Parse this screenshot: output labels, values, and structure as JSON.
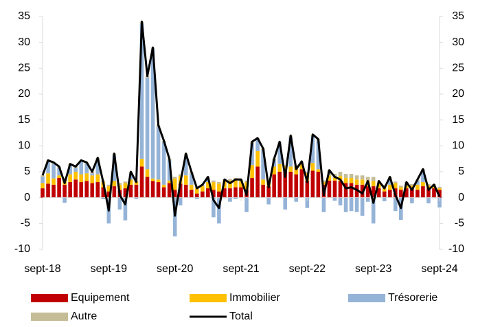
{
  "chart_data": {
    "type": "bar",
    "stacked": true,
    "categories": [
      "sept-18",
      null,
      null,
      null,
      null,
      null,
      null,
      null,
      null,
      null,
      null,
      null,
      "sept-19",
      null,
      null,
      null,
      null,
      null,
      null,
      null,
      null,
      null,
      null,
      null,
      "sept-20",
      null,
      null,
      null,
      null,
      null,
      null,
      null,
      null,
      null,
      null,
      null,
      "sept-21",
      null,
      null,
      null,
      null,
      null,
      null,
      null,
      null,
      null,
      null,
      null,
      "sept-22",
      null,
      null,
      null,
      null,
      null,
      null,
      null,
      null,
      null,
      null,
      null,
      "sept-23",
      null,
      null,
      null,
      null,
      null,
      null,
      null,
      null,
      null,
      null,
      null,
      "sept-24"
    ],
    "ylim": [
      -10,
      35
    ],
    "yticks": [
      -10,
      -5,
      0,
      5,
      10,
      15,
      20,
      25,
      30,
      35
    ],
    "y2lim": [
      -10,
      35
    ],
    "y2ticks": [
      -10,
      -5,
      0,
      5,
      10,
      15,
      20,
      25,
      30,
      35
    ],
    "legend": "bottom",
    "series": [
      {
        "name": "Equipement",
        "color": "#c00000",
        "values": [
          1.8,
          2.7,
          2.5,
          3.8,
          2.5,
          3.0,
          3.5,
          3.0,
          3.2,
          2.8,
          3.0,
          2.0,
          1.2,
          2.2,
          1.5,
          1.8,
          2.5,
          2.5,
          6.0,
          4.0,
          3.2,
          3.0,
          2.0,
          2.8,
          1.5,
          2.7,
          2.5,
          1.5,
          0.8,
          1.2,
          1.8,
          1.5,
          1.2,
          1.8,
          1.8,
          2.0,
          2.0,
          1.5,
          3.8,
          6.0,
          2.5,
          2.2,
          4.5,
          5.0,
          5.0,
          5.0,
          4.5,
          5.5,
          3.2,
          5.2,
          5.0,
          2.5,
          3.3,
          3.3,
          3.2,
          2.8,
          2.8,
          2.5,
          2.5,
          2.2,
          2.2,
          1.8,
          1.2,
          1.5,
          1.8,
          1.5,
          1.8,
          1.8,
          1.5,
          2.2,
          1.8,
          1.8,
          1.5
        ]
      },
      {
        "name": "Immobilier",
        "color": "#ffc000",
        "values": [
          1.0,
          2.0,
          1.2,
          0.5,
          1.0,
          1.5,
          1.5,
          1.5,
          1.5,
          1.5,
          1.5,
          1.0,
          1.0,
          1.0,
          1.0,
          1.0,
          1.0,
          0.5,
          1.5,
          1.5,
          0.5,
          0.5,
          0.5,
          0.5,
          2.2,
          1.5,
          1.8,
          1.0,
          1.0,
          1.0,
          1.2,
          1.5,
          1.5,
          1.5,
          1.5,
          1.5,
          1.2,
          1.5,
          2.5,
          3.0,
          1.0,
          0.8,
          1.5,
          1.5,
          1.0,
          1.0,
          1.5,
          1.0,
          1.5,
          1.5,
          0.5,
          0.5,
          1.0,
          0.5,
          1.0,
          1.0,
          1.0,
          1.0,
          1.0,
          1.0,
          1.0,
          1.0,
          1.0,
          1.0,
          1.0,
          0.5,
          0.5,
          0.5,
          1.0,
          0.8,
          0.5,
          0.5,
          0.3
        ]
      },
      {
        "name": "Trésorerie",
        "color": "#95b3d7",
        "values": [
          1.2,
          2.2,
          2.8,
          1.4,
          -1.0,
          1.7,
          0.7,
          2.4,
          1.8,
          0.4,
          2.9,
          -0.3,
          -5.0,
          5.0,
          -2.3,
          -4.4,
          1.2,
          -0.3,
          26.2,
          17.7,
          25.0,
          10.2,
          8.2,
          3.9,
          -7.5,
          -1.5,
          3.9,
          2.2,
          -0.3,
          0.0,
          0.7,
          -3.8,
          -5.0,
          -0.1,
          -0.8,
          -0.3,
          0.0,
          -2.8,
          4.2,
          2.2,
          5.7,
          -1.3,
          1.2,
          4.0,
          -2.3,
          5.7,
          -0.8,
          0.2,
          -2.0,
          5.2,
          5.5,
          -2.8,
          0.2,
          -0.6,
          -1.5,
          -2.8,
          -2.6,
          -2.8,
          -3.5,
          -0.8,
          -5.0,
          0.1,
          -0.7,
          1.2,
          -2.6,
          -4.3,
          0.4,
          -1.1,
          0.7,
          2.2,
          -1.1,
          -0.1,
          -1.9
        ]
      },
      {
        "name": "Autre",
        "color": "#c4bd97",
        "values": [
          0.3,
          0.3,
          0.3,
          0.3,
          0.3,
          0.3,
          0.3,
          0.3,
          0.3,
          0.3,
          0.3,
          0.3,
          0.3,
          0.3,
          0.3,
          0.3,
          0.3,
          0.3,
          0.3,
          0.3,
          0.3,
          0.3,
          0.3,
          0.3,
          0.3,
          0.3,
          0.3,
          0.3,
          0.3,
          0.3,
          0.3,
          0.3,
          0.3,
          0.3,
          0.3,
          0.3,
          0.3,
          0.3,
          0.3,
          0.3,
          0.3,
          0.3,
          0.3,
          0.3,
          0.3,
          0.3,
          0.3,
          0.3,
          0.3,
          0.3,
          0.3,
          0.3,
          0.8,
          0.8,
          0.8,
          0.8,
          0.8,
          0.8,
          0.8,
          0.8,
          0.8,
          0.3,
          0.3,
          0.3,
          0.3,
          0.3,
          0.3,
          0.3,
          0.3,
          0.3,
          0.3,
          0.3,
          0.3
        ]
      },
      {
        "name": "Total",
        "color": "#000000",
        "type": "line",
        "values": [
          4.3,
          7.2,
          6.8,
          6.0,
          2.8,
          6.5,
          6.0,
          7.2,
          6.8,
          5.0,
          7.7,
          3.0,
          -2.5,
          8.5,
          0.5,
          -1.3,
          5.0,
          3.0,
          34.0,
          23.5,
          29.0,
          14.0,
          11.0,
          7.5,
          -3.5,
          3.0,
          8.5,
          5.0,
          1.8,
          2.5,
          4.0,
          -0.5,
          -2.0,
          3.5,
          2.8,
          3.5,
          3.5,
          0.5,
          10.8,
          11.5,
          9.5,
          2.0,
          7.5,
          10.8,
          4.0,
          12.0,
          5.5,
          7.0,
          3.0,
          12.2,
          11.3,
          0.5,
          5.3,
          4.0,
          3.5,
          1.8,
          2.0,
          1.5,
          0.8,
          3.2,
          -1.0,
          3.2,
          1.8,
          4.0,
          0.5,
          -2.0,
          3.0,
          1.5,
          3.5,
          5.5,
          1.5,
          2.5,
          0.2
        ]
      }
    ]
  }
}
